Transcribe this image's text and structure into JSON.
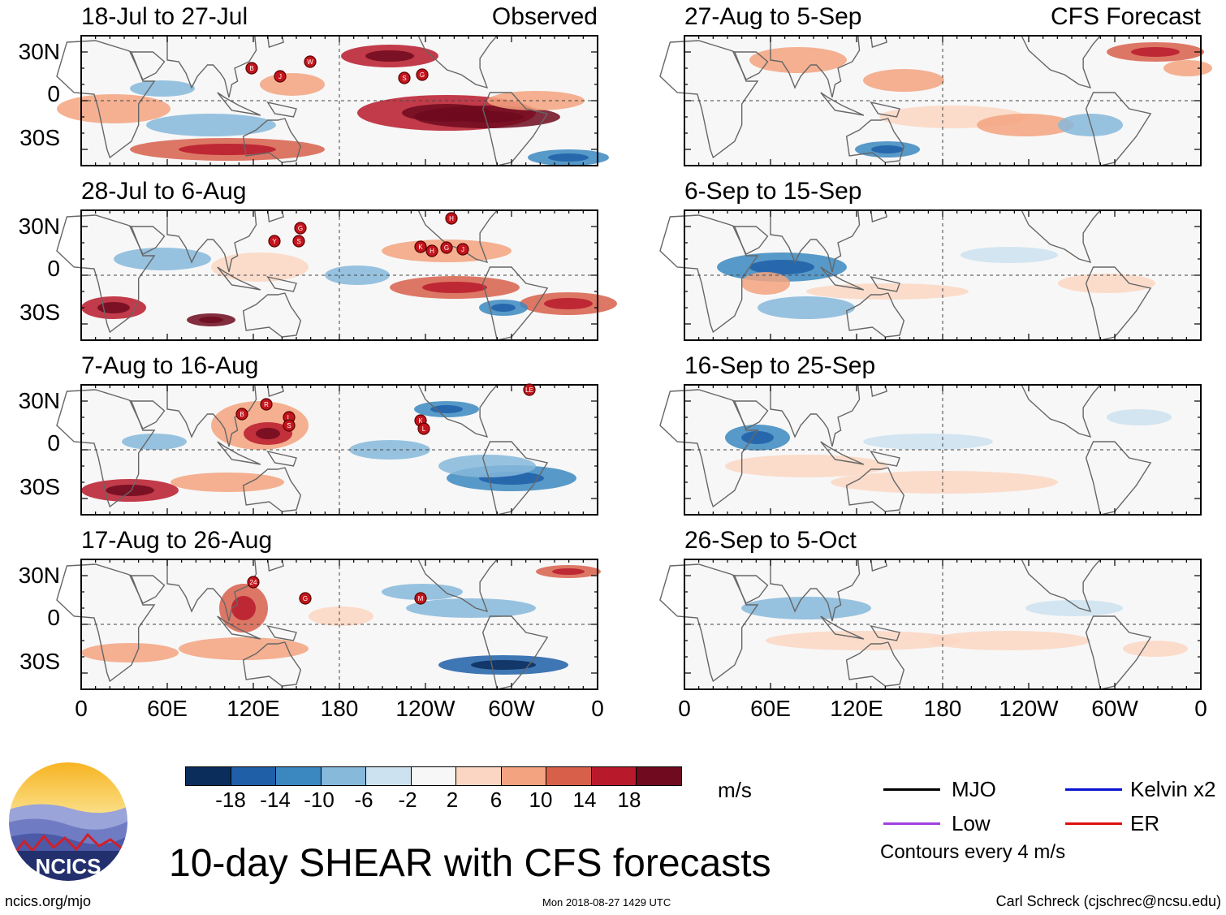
{
  "panels": [
    {
      "title": "18-Jul to 27-Jul",
      "label": "Observed",
      "storms": [
        "B",
        "J",
        "W",
        "S",
        "G"
      ]
    },
    {
      "title": "28-Jul to 6-Aug",
      "label": "",
      "storms": [
        "Y",
        "S",
        "G",
        "K",
        "H",
        "G",
        "J",
        "H"
      ]
    },
    {
      "title": "7-Aug to 16-Aug",
      "label": "",
      "storms": [
        "B",
        "R",
        "L",
        "S",
        "K",
        "L",
        "LE"
      ]
    },
    {
      "title": "17-Aug to 26-Aug",
      "label": "",
      "storms": [
        "24",
        "G",
        "M"
      ]
    },
    {
      "title": "27-Aug to 5-Sep",
      "label": "CFS Forecast",
      "storms": []
    },
    {
      "title": "6-Sep to 15-Sep",
      "label": "",
      "storms": []
    },
    {
      "title": "16-Sep to 25-Sep",
      "label": "",
      "storms": []
    },
    {
      "title": "26-Sep to 5-Oct",
      "label": "",
      "storms": []
    }
  ],
  "lat_labels": [
    "30N",
    "0",
    "30S"
  ],
  "lon_labels": [
    "0",
    "60E",
    "120E",
    "180",
    "120W",
    "60W",
    "0"
  ],
  "colorbar": {
    "colors": [
      "#0b2d5b",
      "#1f5fa8",
      "#3b88c0",
      "#86b9da",
      "#cde2f0",
      "#f7f7f7",
      "#fbd7c3",
      "#f3a37f",
      "#d8604b",
      "#b91a2b",
      "#6f0a1f"
    ],
    "ticks": [
      "-18",
      "-14",
      "-10",
      "-6",
      "-2",
      "2",
      "6",
      "10",
      "14",
      "18"
    ],
    "units": "m/s"
  },
  "legend": [
    {
      "label": "MJO",
      "color": "#000000"
    },
    {
      "label": "Kelvin x2",
      "color": "#0a14d0"
    },
    {
      "label": "Low",
      "color": "#a040e0"
    },
    {
      "label": "ER",
      "color": "#e01010"
    }
  ],
  "contours_note": "Contours every 4 m/s",
  "logo_text": "NCICS",
  "main_title": "10-day SHEAR with CFS forecasts",
  "footer": {
    "left": "ncics.org/mjo",
    "center": "Mon 2018-08-27 1429 UTC",
    "right": "Carl Schreck (cjschrec@ncsu.edu)"
  }
}
